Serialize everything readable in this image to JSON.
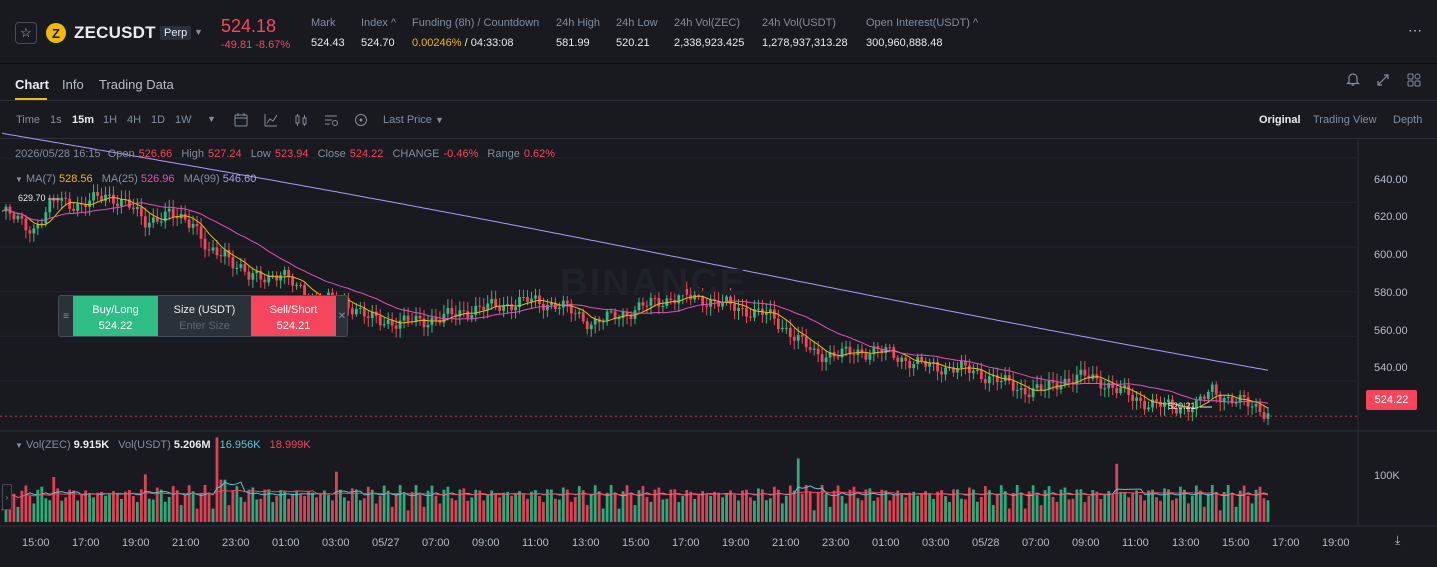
{
  "header": {
    "symbol": "ZECUSDT",
    "coin_letter": "Z",
    "badge": "Perp",
    "last_price": "524.18",
    "change": "-49.81 -8.67%",
    "stats": [
      {
        "label": "Mark",
        "value": "524.43"
      },
      {
        "label": "Index ^",
        "value": "524.70"
      },
      {
        "label": "Funding (8h) / Countdown",
        "funding": "0.00246%",
        "countdown": " / 04:33:08"
      },
      {
        "label": "24h High",
        "value": "581.99"
      },
      {
        "label": "24h Low",
        "value": "520.21"
      },
      {
        "label": "24h Vol(ZEC)",
        "value": "2,338,923.425"
      },
      {
        "label": "24h Vol(USDT)",
        "value": "1,278,937,313.28"
      },
      {
        "label": "Open Interest(USDT) ^",
        "value": "300,960,888.48"
      }
    ]
  },
  "tabs": [
    "Chart",
    "Info",
    "Trading Data"
  ],
  "toolbar": {
    "timeframes": [
      "Time",
      "1s",
      "15m",
      "1H",
      "4H",
      "1D",
      "1W"
    ],
    "price_type": "Last Price",
    "views": [
      "Original",
      "Trading View",
      "Depth"
    ]
  },
  "legend": {
    "date": "2026/05/28 16:15",
    "open_label": "Open",
    "open": "526.66",
    "high_label": "High",
    "high": "527.24",
    "low_label": "Low",
    "low": "523.94",
    "close_label": "Close",
    "close": "524.22",
    "change_label": "CHANGE",
    "change": "-0.46%",
    "range_label": "Range",
    "range": "0.62%",
    "ma7_label": "MA(7)",
    "ma7": "528.56",
    "ma25_label": "MA(25)",
    "ma25": "526.96",
    "ma99_label": "MA(99)",
    "ma99": "546.60",
    "vol_zec_label": "Vol(ZEC)",
    "vol_zec": "9.915K",
    "vol_usdt_label": "Vol(USDT)",
    "vol_usdt": "5.206M",
    "vol_ma1": "16.956K",
    "vol_ma2": "18.999K"
  },
  "order_widget": {
    "buy_label": "Buy/Long",
    "buy_price": "524.22",
    "size_label": "Size (USDT)",
    "size_placeholder": "Enter Size",
    "sell_label": "Sell/Short",
    "sell_price": "524.21"
  },
  "chart_data": {
    "type": "candlestick",
    "current_price": "524.22",
    "high_marker": "629.70",
    "low_marker": "520.21",
    "watermark": "BINANCE",
    "y_ticks": [
      "640.00",
      "620.00",
      "600.00",
      "580.00",
      "560.00",
      "540.00"
    ],
    "volume_tick": "100K",
    "x_ticks": [
      "15:00",
      "17:00",
      "19:00",
      "21:00",
      "23:00",
      "01:00",
      "03:00",
      "05/27",
      "07:00",
      "09:00",
      "11:00",
      "13:00",
      "15:00",
      "17:00",
      "19:00",
      "21:00",
      "23:00",
      "01:00",
      "03:00",
      "05/28",
      "07:00",
      "09:00",
      "11:00",
      "13:00",
      "15:00",
      "17:00",
      "19:00"
    ],
    "ylim": [
      518,
      648
    ],
    "colors": {
      "up": "#2ebd85",
      "down": "#f6465d",
      "ma7": "#f0b90b",
      "ma25": "#e052b8",
      "ma99": "#a99cf8",
      "vol_ma": "#58c8d6"
    },
    "close_keypoints": [
      [
        0,
        616
      ],
      [
        8,
        608
      ],
      [
        14,
        622
      ],
      [
        20,
        618
      ],
      [
        26,
        624
      ],
      [
        32,
        618
      ],
      [
        36,
        612
      ],
      [
        42,
        614
      ],
      [
        48,
        612
      ],
      [
        52,
        596
      ],
      [
        56,
        598
      ],
      [
        62,
        586
      ],
      [
        70,
        588
      ],
      [
        74,
        582
      ],
      [
        80,
        576
      ],
      [
        86,
        576
      ],
      [
        92,
        568
      ],
      [
        100,
        566
      ],
      [
        110,
        568
      ],
      [
        118,
        572
      ],
      [
        126,
        574
      ],
      [
        132,
        576
      ],
      [
        140,
        574
      ],
      [
        148,
        566
      ],
      [
        156,
        570
      ],
      [
        162,
        574
      ],
      [
        170,
        578
      ],
      [
        178,
        576
      ],
      [
        186,
        572
      ],
      [
        192,
        570
      ],
      [
        198,
        562
      ],
      [
        204,
        552
      ],
      [
        212,
        552
      ],
      [
        220,
        554
      ],
      [
        226,
        550
      ],
      [
        234,
        546
      ],
      [
        240,
        546
      ],
      [
        248,
        542
      ],
      [
        256,
        536
      ],
      [
        262,
        536
      ],
      [
        266,
        540
      ],
      [
        272,
        542
      ],
      [
        276,
        540
      ],
      [
        280,
        536
      ],
      [
        286,
        531
      ],
      [
        294,
        528
      ],
      [
        300,
        529
      ],
      [
        304,
        536
      ],
      [
        308,
        532
      ],
      [
        314,
        529
      ],
      [
        318,
        526
      ]
    ]
  }
}
